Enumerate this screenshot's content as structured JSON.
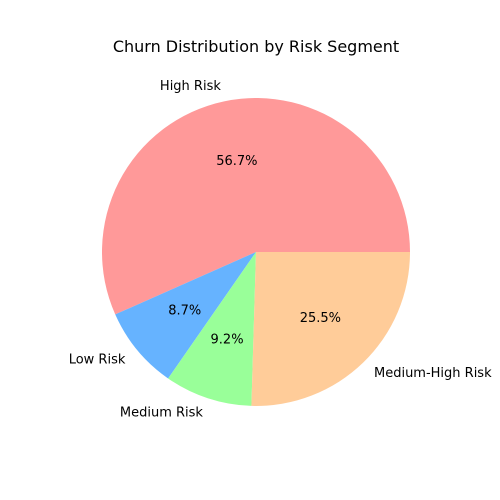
{
  "chart_data": {
    "type": "pie",
    "title": "Churn Distribution by Risk Segment",
    "slices": [
      {
        "label": "High Risk",
        "percent": 56.7,
        "percent_label": "56.7%",
        "color": "#ff9999"
      },
      {
        "label": "Low Risk",
        "percent": 8.7,
        "percent_label": "8.7%",
        "color": "#66b3ff"
      },
      {
        "label": "Medium Risk",
        "percent": 9.2,
        "percent_label": "9.2%",
        "color": "#99ff99"
      },
      {
        "label": "Medium-High Risk",
        "percent": 25.5,
        "percent_label": "25.5%",
        "color": "#ffcc99"
      }
    ],
    "start_angle": 0,
    "direction": "counterclockwise",
    "legend": "none"
  }
}
